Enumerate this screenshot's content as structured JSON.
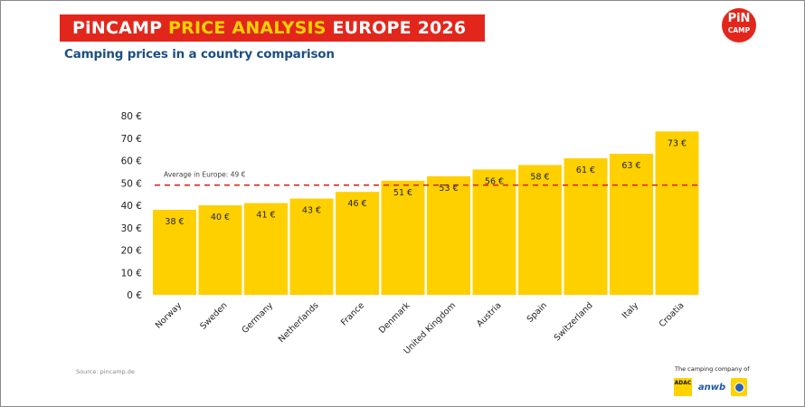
{
  "header": {
    "title_part1": "PiNCAMP ",
    "title_part2": "PRICE ANALYSIS",
    "title_part3": " EUROPE 2026",
    "subtitle": "Camping prices in a country comparison",
    "logo_line1": "PiN",
    "logo_line2": "CAMP"
  },
  "colors": {
    "banner": "#e3261b",
    "highlight": "#ffd200",
    "bar": "#ffd000",
    "average_line": "#d9251c",
    "subtitle": "#1d4f82"
  },
  "chart_data": {
    "type": "bar",
    "title": "Camping prices in a country comparison",
    "xlabel": "",
    "ylabel": "",
    "categories": [
      "Norway",
      "Sweden",
      "Germany",
      "Netherlands",
      "France",
      "Denmark",
      "United Kingdom",
      "Austria",
      "Spain",
      "Switzerland",
      "Italy",
      "Croatia"
    ],
    "values": [
      38,
      40,
      41,
      43,
      46,
      51,
      53,
      56,
      58,
      61,
      63,
      73
    ],
    "value_labels": [
      "38 €",
      "40 €",
      "41 €",
      "43 €",
      "46 €",
      "51 €",
      "53 €",
      "56 €",
      "58 €",
      "61 €",
      "63 €",
      "73 €"
    ],
    "ylim": [
      0,
      80
    ],
    "yticks": [
      0,
      10,
      20,
      30,
      40,
      50,
      60,
      70,
      80
    ],
    "ytick_labels": [
      "0 €",
      "10 €",
      "20 €",
      "30 €",
      "40 €",
      "50 €",
      "60 €",
      "70 €",
      "80 €"
    ],
    "grid": false,
    "legend": "none",
    "reference_line": {
      "value": 49,
      "label": "Average in Europe: 49 €",
      "style": "dashed"
    },
    "unit": "€"
  },
  "footer": {
    "source": "Source: pincamp.de",
    "partners_label": "The camping company of",
    "partners": [
      "ADAC",
      "anwb",
      "TCS"
    ]
  }
}
